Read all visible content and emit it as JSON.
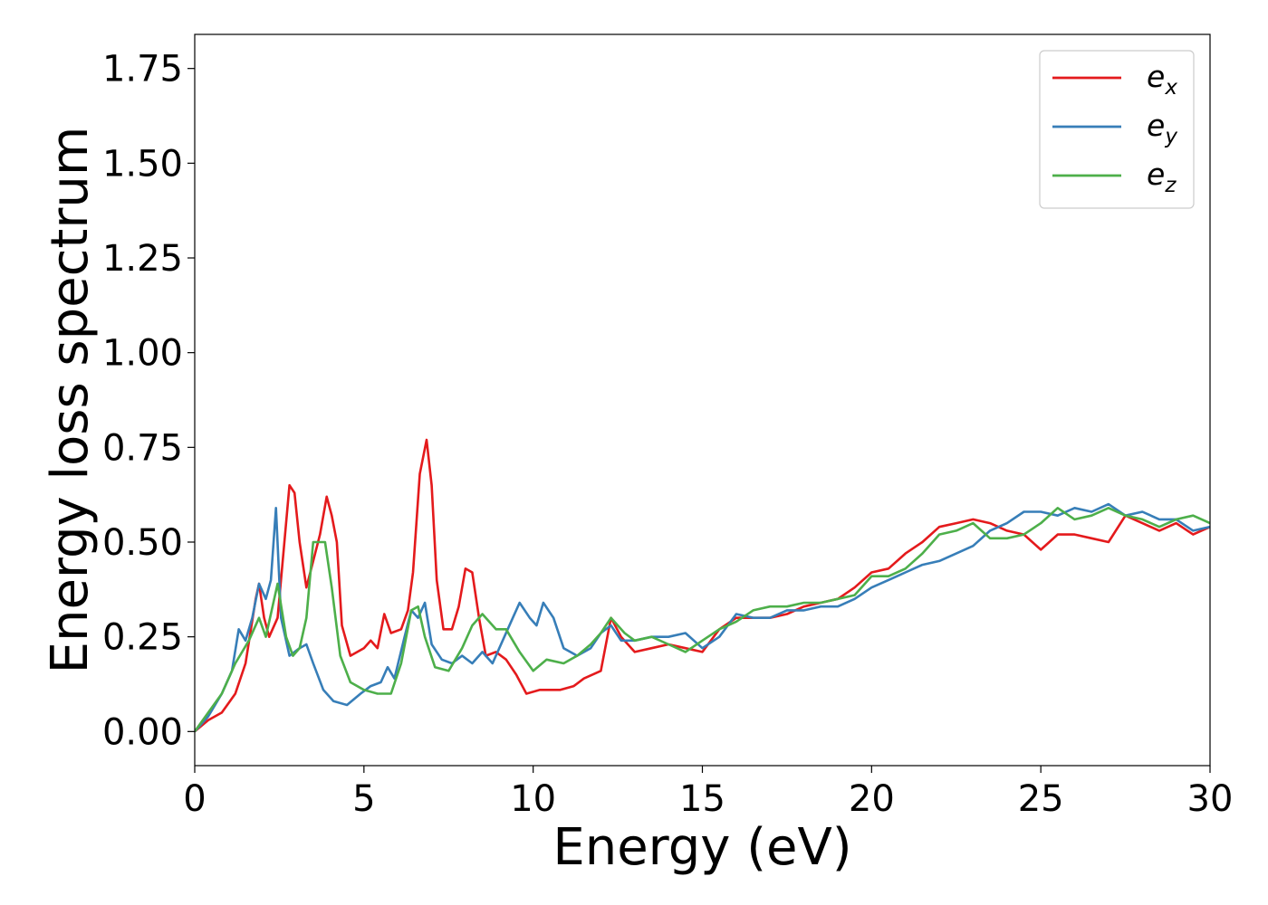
{
  "chart_data": {
    "type": "line",
    "title": "",
    "xlabel": "Energy (eV)",
    "ylabel": "Energy loss spectrum",
    "xlim": [
      0,
      30
    ],
    "ylim": [
      -0.09,
      1.84
    ],
    "xticks": [
      0,
      5,
      10,
      15,
      20,
      25,
      30
    ],
    "xtick_labels": [
      "0",
      "5",
      "10",
      "15",
      "20",
      "25",
      "30"
    ],
    "yticks": [
      0.0,
      0.25,
      0.5,
      0.75,
      1.0,
      1.25,
      1.5,
      1.75
    ],
    "ytick_labels": [
      "0.00",
      "0.25",
      "0.50",
      "0.75",
      "1.00",
      "1.25",
      "1.50",
      "1.75"
    ],
    "grid": false,
    "legend_position": "top-right",
    "series": [
      {
        "name": "e_x",
        "legend_base": "e",
        "legend_sub": "x",
        "color": "#e41a1c",
        "points": [
          [
            0,
            0
          ],
          [
            0.4,
            0.03
          ],
          [
            0.8,
            0.05
          ],
          [
            1.2,
            0.1
          ],
          [
            1.5,
            0.18
          ],
          [
            1.8,
            0.35
          ],
          [
            1.9,
            0.39
          ],
          [
            2.05,
            0.3
          ],
          [
            2.2,
            0.25
          ],
          [
            2.45,
            0.3
          ],
          [
            2.65,
            0.5
          ],
          [
            2.8,
            0.65
          ],
          [
            2.95,
            0.63
          ],
          [
            3.1,
            0.5
          ],
          [
            3.3,
            0.38
          ],
          [
            3.5,
            0.45
          ],
          [
            3.7,
            0.52
          ],
          [
            3.9,
            0.62
          ],
          [
            4.05,
            0.57
          ],
          [
            4.2,
            0.5
          ],
          [
            4.35,
            0.28
          ],
          [
            4.6,
            0.2
          ],
          [
            5.0,
            0.22
          ],
          [
            5.2,
            0.24
          ],
          [
            5.4,
            0.22
          ],
          [
            5.6,
            0.31
          ],
          [
            5.8,
            0.26
          ],
          [
            6.1,
            0.27
          ],
          [
            6.3,
            0.32
          ],
          [
            6.45,
            0.42
          ],
          [
            6.65,
            0.68
          ],
          [
            6.85,
            0.77
          ],
          [
            7.0,
            0.65
          ],
          [
            7.15,
            0.4
          ],
          [
            7.35,
            0.27
          ],
          [
            7.6,
            0.27
          ],
          [
            7.8,
            0.33
          ],
          [
            8.0,
            0.43
          ],
          [
            8.2,
            0.42
          ],
          [
            8.4,
            0.3
          ],
          [
            8.6,
            0.2
          ],
          [
            8.9,
            0.21
          ],
          [
            9.2,
            0.19
          ],
          [
            9.5,
            0.15
          ],
          [
            9.8,
            0.1
          ],
          [
            10.2,
            0.11
          ],
          [
            10.8,
            0.11
          ],
          [
            11.2,
            0.12
          ],
          [
            11.5,
            0.14
          ],
          [
            12.0,
            0.16
          ],
          [
            12.3,
            0.3
          ],
          [
            12.6,
            0.25
          ],
          [
            13.0,
            0.21
          ],
          [
            13.5,
            0.22
          ],
          [
            14.0,
            0.23
          ],
          [
            14.5,
            0.22
          ],
          [
            15.0,
            0.21
          ],
          [
            15.5,
            0.27
          ],
          [
            16.0,
            0.3
          ],
          [
            16.5,
            0.3
          ],
          [
            17.0,
            0.3
          ],
          [
            17.5,
            0.31
          ],
          [
            18.0,
            0.33
          ],
          [
            18.5,
            0.34
          ],
          [
            19.0,
            0.35
          ],
          [
            19.5,
            0.38
          ],
          [
            20.0,
            0.42
          ],
          [
            20.5,
            0.43
          ],
          [
            21.0,
            0.47
          ],
          [
            21.5,
            0.5
          ],
          [
            22.0,
            0.54
          ],
          [
            22.5,
            0.55
          ],
          [
            23.0,
            0.56
          ],
          [
            23.5,
            0.55
          ],
          [
            24.0,
            0.53
          ],
          [
            24.5,
            0.52
          ],
          [
            25.0,
            0.48
          ],
          [
            25.5,
            0.52
          ],
          [
            26.0,
            0.52
          ],
          [
            26.5,
            0.51
          ],
          [
            27.0,
            0.5
          ],
          [
            27.5,
            0.57
          ],
          [
            28.0,
            0.55
          ],
          [
            28.5,
            0.53
          ],
          [
            29.0,
            0.55
          ],
          [
            29.5,
            0.52
          ],
          [
            30.0,
            0.54
          ]
        ]
      },
      {
        "name": "e_y",
        "legend_base": "e",
        "legend_sub": "y",
        "color": "#377eb8",
        "points": [
          [
            0,
            0
          ],
          [
            0.4,
            0.04
          ],
          [
            0.8,
            0.1
          ],
          [
            1.1,
            0.16
          ],
          [
            1.3,
            0.27
          ],
          [
            1.5,
            0.24
          ],
          [
            1.7,
            0.3
          ],
          [
            1.9,
            0.39
          ],
          [
            2.1,
            0.35
          ],
          [
            2.25,
            0.4
          ],
          [
            2.4,
            0.59
          ],
          [
            2.55,
            0.3
          ],
          [
            2.8,
            0.2
          ],
          [
            3.1,
            0.22
          ],
          [
            3.3,
            0.23
          ],
          [
            3.5,
            0.18
          ],
          [
            3.8,
            0.11
          ],
          [
            4.1,
            0.08
          ],
          [
            4.5,
            0.07
          ],
          [
            4.9,
            0.1
          ],
          [
            5.2,
            0.12
          ],
          [
            5.5,
            0.13
          ],
          [
            5.7,
            0.17
          ],
          [
            5.9,
            0.14
          ],
          [
            6.2,
            0.25
          ],
          [
            6.4,
            0.32
          ],
          [
            6.6,
            0.3
          ],
          [
            6.8,
            0.34
          ],
          [
            7.0,
            0.23
          ],
          [
            7.3,
            0.19
          ],
          [
            7.6,
            0.18
          ],
          [
            7.9,
            0.2
          ],
          [
            8.2,
            0.18
          ],
          [
            8.5,
            0.21
          ],
          [
            8.8,
            0.18
          ],
          [
            9.1,
            0.24
          ],
          [
            9.4,
            0.3
          ],
          [
            9.6,
            0.34
          ],
          [
            9.9,
            0.3
          ],
          [
            10.1,
            0.28
          ],
          [
            10.3,
            0.34
          ],
          [
            10.6,
            0.3
          ],
          [
            10.9,
            0.22
          ],
          [
            11.3,
            0.2
          ],
          [
            11.7,
            0.22
          ],
          [
            12.0,
            0.26
          ],
          [
            12.3,
            0.28
          ],
          [
            12.6,
            0.24
          ],
          [
            13.0,
            0.24
          ],
          [
            13.5,
            0.25
          ],
          [
            14.0,
            0.25
          ],
          [
            14.5,
            0.26
          ],
          [
            15.0,
            0.22
          ],
          [
            15.5,
            0.25
          ],
          [
            16.0,
            0.31
          ],
          [
            16.5,
            0.3
          ],
          [
            17.0,
            0.3
          ],
          [
            17.5,
            0.32
          ],
          [
            18.0,
            0.32
          ],
          [
            18.5,
            0.33
          ],
          [
            19.0,
            0.33
          ],
          [
            19.5,
            0.35
          ],
          [
            20.0,
            0.38
          ],
          [
            20.5,
            0.4
          ],
          [
            21.0,
            0.42
          ],
          [
            21.5,
            0.44
          ],
          [
            22.0,
            0.45
          ],
          [
            22.5,
            0.47
          ],
          [
            23.0,
            0.49
          ],
          [
            23.5,
            0.53
          ],
          [
            24.0,
            0.55
          ],
          [
            24.5,
            0.58
          ],
          [
            25.0,
            0.58
          ],
          [
            25.5,
            0.57
          ],
          [
            26.0,
            0.59
          ],
          [
            26.5,
            0.58
          ],
          [
            27.0,
            0.6
          ],
          [
            27.5,
            0.57
          ],
          [
            28.0,
            0.58
          ],
          [
            28.5,
            0.56
          ],
          [
            29.0,
            0.56
          ],
          [
            29.5,
            0.53
          ],
          [
            30.0,
            0.54
          ]
        ]
      },
      {
        "name": "e_z",
        "legend_base": "e",
        "legend_sub": "z",
        "color": "#4daf4a",
        "points": [
          [
            0,
            0
          ],
          [
            0.4,
            0.05
          ],
          [
            0.8,
            0.1
          ],
          [
            1.2,
            0.18
          ],
          [
            1.6,
            0.24
          ],
          [
            1.9,
            0.3
          ],
          [
            2.1,
            0.25
          ],
          [
            2.3,
            0.33
          ],
          [
            2.45,
            0.39
          ],
          [
            2.7,
            0.25
          ],
          [
            2.9,
            0.2
          ],
          [
            3.1,
            0.22
          ],
          [
            3.3,
            0.3
          ],
          [
            3.5,
            0.5
          ],
          [
            3.7,
            0.5
          ],
          [
            3.85,
            0.5
          ],
          [
            4.05,
            0.38
          ],
          [
            4.3,
            0.2
          ],
          [
            4.6,
            0.13
          ],
          [
            5.0,
            0.11
          ],
          [
            5.4,
            0.1
          ],
          [
            5.8,
            0.1
          ],
          [
            6.1,
            0.18
          ],
          [
            6.4,
            0.32
          ],
          [
            6.6,
            0.33
          ],
          [
            6.8,
            0.25
          ],
          [
            7.1,
            0.17
          ],
          [
            7.5,
            0.16
          ],
          [
            7.9,
            0.22
          ],
          [
            8.2,
            0.28
          ],
          [
            8.5,
            0.31
          ],
          [
            8.9,
            0.27
          ],
          [
            9.2,
            0.27
          ],
          [
            9.6,
            0.21
          ],
          [
            10.0,
            0.16
          ],
          [
            10.4,
            0.19
          ],
          [
            10.9,
            0.18
          ],
          [
            11.3,
            0.2
          ],
          [
            11.7,
            0.23
          ],
          [
            12.0,
            0.26
          ],
          [
            12.3,
            0.3
          ],
          [
            12.7,
            0.26
          ],
          [
            13.0,
            0.24
          ],
          [
            13.5,
            0.25
          ],
          [
            14.0,
            0.23
          ],
          [
            14.5,
            0.21
          ],
          [
            15.0,
            0.24
          ],
          [
            15.5,
            0.27
          ],
          [
            16.0,
            0.29
          ],
          [
            16.5,
            0.32
          ],
          [
            17.0,
            0.33
          ],
          [
            17.5,
            0.33
          ],
          [
            18.0,
            0.34
          ],
          [
            18.5,
            0.34
          ],
          [
            19.0,
            0.35
          ],
          [
            19.5,
            0.36
          ],
          [
            20.0,
            0.41
          ],
          [
            20.5,
            0.41
          ],
          [
            21.0,
            0.43
          ],
          [
            21.5,
            0.47
          ],
          [
            22.0,
            0.52
          ],
          [
            22.5,
            0.53
          ],
          [
            23.0,
            0.55
          ],
          [
            23.5,
            0.51
          ],
          [
            24.0,
            0.51
          ],
          [
            24.5,
            0.52
          ],
          [
            25.0,
            0.55
          ],
          [
            25.5,
            0.59
          ],
          [
            26.0,
            0.56
          ],
          [
            26.5,
            0.57
          ],
          [
            27.0,
            0.59
          ],
          [
            27.5,
            0.57
          ],
          [
            28.0,
            0.56
          ],
          [
            28.5,
            0.54
          ],
          [
            29.0,
            0.56
          ],
          [
            29.5,
            0.57
          ],
          [
            30.0,
            0.55
          ]
        ]
      }
    ]
  }
}
